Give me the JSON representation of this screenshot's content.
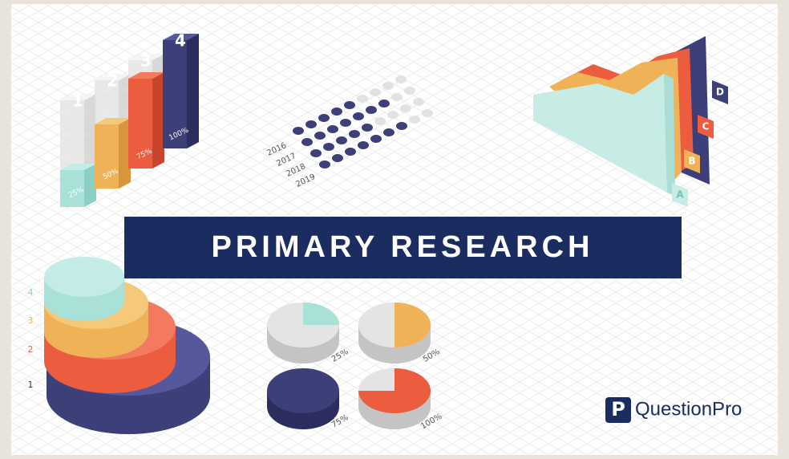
{
  "bars": {
    "labels": [
      "1",
      "2",
      "3",
      "4"
    ],
    "value_labels": [
      "25%",
      "50%",
      "75%",
      "100%"
    ]
  },
  "timeline": {
    "years": [
      "2016",
      "2017",
      "2018",
      "2019"
    ]
  },
  "banner": {
    "title": "PRIMARY RESEARCH"
  },
  "layers": {
    "labels": [
      "A",
      "B",
      "C",
      "D"
    ]
  },
  "discs": {
    "labels": [
      "4",
      "3",
      "2",
      "1"
    ]
  },
  "pies": {
    "labels": [
      "25%",
      "50%",
      "75%",
      "100%"
    ]
  },
  "logo": {
    "text": "QuestionPro"
  }
}
